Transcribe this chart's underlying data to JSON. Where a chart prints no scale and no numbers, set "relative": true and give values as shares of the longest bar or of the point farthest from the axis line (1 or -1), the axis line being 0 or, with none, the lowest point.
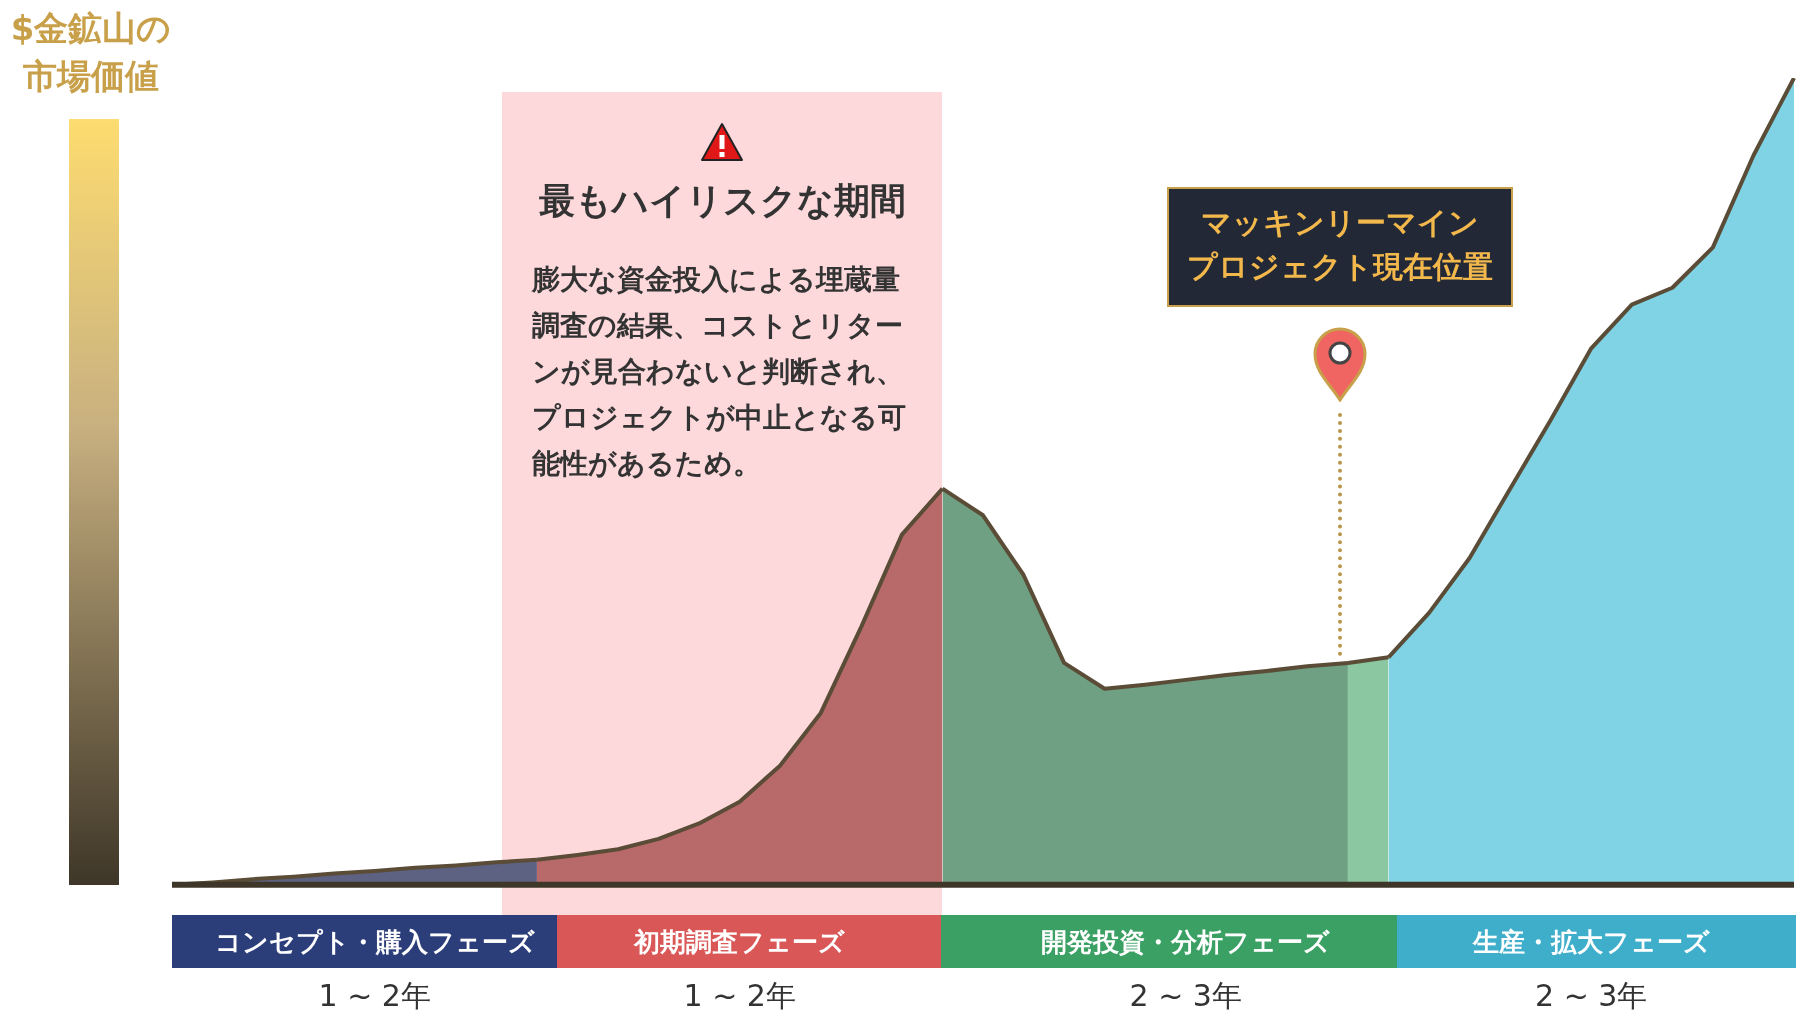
{
  "chart_data": {
    "type": "area",
    "relative": true,
    "tick_labels": "x",
    "legend": false,
    "ylabel": "$金鉱山の市場価値",
    "categories": [
      null,
      null,
      null,
      null,
      null,
      "コンセプト・購入フェーズ",
      null,
      null,
      null,
      null,
      null,
      null,
      null,
      null,
      "初期調査フェーズ",
      null,
      null,
      null,
      null,
      null,
      null,
      null,
      null,
      null,
      null,
      "開発投資・分析フェーズ",
      null,
      null,
      null,
      null,
      null,
      null,
      null,
      null,
      null,
      "生産・拡大フェーズ",
      null,
      null,
      null,
      null,
      null
    ],
    "series": [
      {
        "color": "#5e6282",
        "values": [
          0,
          0.003,
          0.007,
          0.01,
          0.014,
          0.017,
          0.021,
          0.024,
          0.028,
          0.031,
          null,
          null,
          null,
          null,
          null,
          null,
          null,
          null,
          null,
          null,
          null,
          null,
          null,
          null,
          null,
          null,
          null,
          null,
          null,
          null,
          null,
          null,
          null,
          null,
          null,
          null,
          null,
          null,
          null,
          null,
          null
        ]
      },
      {
        "color": "#b86a6a",
        "values": [
          null,
          null,
          null,
          null,
          null,
          null,
          null,
          null,
          null,
          0.031,
          0.037,
          0.044,
          0.057,
          0.076,
          0.103,
          0.148,
          0.213,
          0.32,
          0.434,
          0.491,
          null,
          null,
          null,
          null,
          null,
          null,
          null,
          null,
          null,
          null,
          null,
          null,
          null,
          null,
          null,
          null,
          null,
          null,
          null,
          null,
          null
        ]
      },
      {
        "color": "#6fa083",
        "values": [
          null,
          null,
          null,
          null,
          null,
          null,
          null,
          null,
          null,
          null,
          null,
          null,
          null,
          null,
          null,
          null,
          null,
          null,
          null,
          0.491,
          0.458,
          0.384,
          0.275,
          0.243,
          0.248,
          0.254,
          0.26,
          0.265,
          0.271,
          0.275,
          null,
          null,
          null,
          null,
          null,
          null,
          null,
          null,
          null,
          null,
          null
        ]
      },
      {
        "color": "#8bc7a0",
        "values": [
          null,
          null,
          null,
          null,
          null,
          null,
          null,
          null,
          null,
          null,
          null,
          null,
          null,
          null,
          null,
          null,
          null,
          null,
          null,
          null,
          null,
          null,
          null,
          null,
          null,
          null,
          null,
          null,
          null,
          0.275,
          0.282,
          null,
          null,
          null,
          null,
          null,
          null,
          null,
          null,
          null,
          null
        ]
      },
      {
        "color": "#7fd3e4",
        "values": [
          null,
          null,
          null,
          null,
          null,
          null,
          null,
          null,
          null,
          null,
          null,
          null,
          null,
          null,
          null,
          null,
          null,
          null,
          null,
          null,
          null,
          null,
          null,
          null,
          null,
          null,
          null,
          null,
          null,
          null,
          0.282,
          0.337,
          0.405,
          0.491,
          0.576,
          0.665,
          0.719,
          0.74,
          0.79,
          0.904,
          1
        ]
      }
    ],
    "annotations": [
      "最もハイリスクな期間",
      "マッキンリーマインプロジェクト現在位置",
      "膨大な資金投入による埋蔵量調査の結果、コストとリターンが見合わないと判断され、プロジェクトが中止となる可能性があるため。",
      "1 ~ 2年",
      "1 ~ 2年",
      "2 ~ 3年",
      "2 ~ 3年"
    ]
  }
}
